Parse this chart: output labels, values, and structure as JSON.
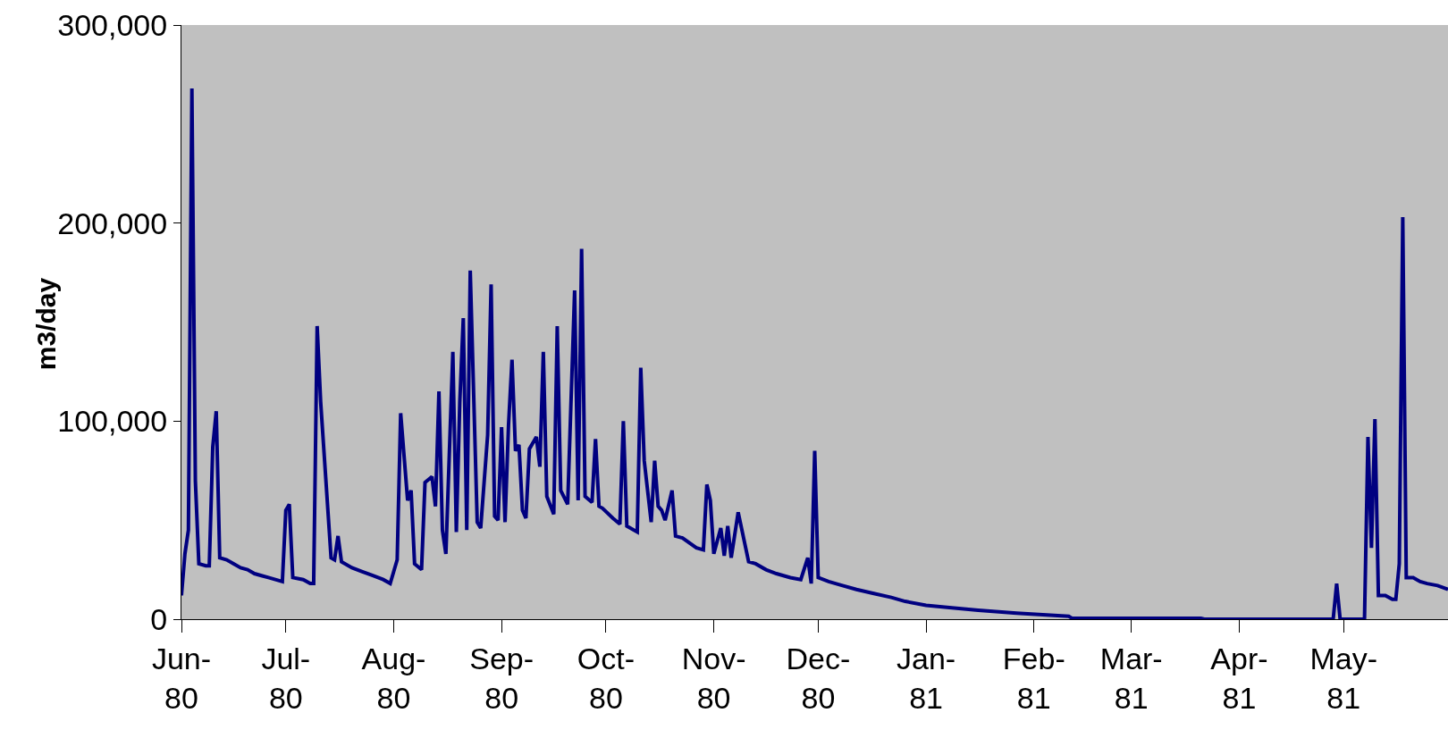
{
  "chart_data": {
    "type": "line",
    "ylabel": "m3/day",
    "x": [
      "1980-06-01",
      "1980-06-02",
      "1980-06-03",
      "1980-06-04",
      "1980-06-05",
      "1980-06-06",
      "1980-06-08",
      "1980-06-09",
      "1980-06-10",
      "1980-06-11",
      "1980-06-12",
      "1980-06-14",
      "1980-06-16",
      "1980-06-18",
      "1980-06-20",
      "1980-06-22",
      "1980-06-24",
      "1980-06-26",
      "1980-06-28",
      "1980-06-30",
      "1980-07-01",
      "1980-07-02",
      "1980-07-03",
      "1980-07-06",
      "1980-07-08",
      "1980-07-09",
      "1980-07-10",
      "1980-07-11",
      "1980-07-14",
      "1980-07-15",
      "1980-07-16",
      "1980-07-17",
      "1980-07-20",
      "1980-07-23",
      "1980-07-26",
      "1980-07-29",
      "1980-07-31",
      "1980-08-02",
      "1980-08-03",
      "1980-08-05",
      "1980-08-06",
      "1980-08-07",
      "1980-08-09",
      "1980-08-10",
      "1980-08-12",
      "1980-08-13",
      "1980-08-14",
      "1980-08-15",
      "1980-08-16",
      "1980-08-18",
      "1980-08-19",
      "1980-08-20",
      "1980-08-21",
      "1980-08-22",
      "1980-08-23",
      "1980-08-25",
      "1980-08-26",
      "1980-08-28",
      "1980-08-29",
      "1980-08-30",
      "1980-08-31",
      "1980-09-01",
      "1980-09-02",
      "1980-09-03",
      "1980-09-04",
      "1980-09-05",
      "1980-09-06",
      "1980-09-07",
      "1980-09-08",
      "1980-09-09",
      "1980-09-11",
      "1980-09-12",
      "1980-09-13",
      "1980-09-14",
      "1980-09-16",
      "1980-09-17",
      "1980-09-18",
      "1980-09-20",
      "1980-09-22",
      "1980-09-23",
      "1980-09-24",
      "1980-09-25",
      "1980-09-27",
      "1980-09-28",
      "1980-09-29",
      "1980-09-30",
      "1980-10-03",
      "1980-10-05",
      "1980-10-06",
      "1980-10-07",
      "1980-10-10",
      "1980-10-11",
      "1980-10-12",
      "1980-10-14",
      "1980-10-15",
      "1980-10-16",
      "1980-10-17",
      "1980-10-18",
      "1980-10-20",
      "1980-10-21",
      "1980-10-23",
      "1980-10-27",
      "1980-10-29",
      "1980-10-30",
      "1980-10-31",
      "1980-11-01",
      "1980-11-03",
      "1980-11-04",
      "1980-11-05",
      "1980-11-06",
      "1980-11-08",
      "1980-11-11",
      "1980-11-13",
      "1980-11-16",
      "1980-11-19",
      "1980-11-23",
      "1980-11-26",
      "1980-11-28",
      "1980-11-29",
      "1980-11-30",
      "1980-12-01",
      "1980-12-04",
      "1980-12-08",
      "1980-12-12",
      "1980-12-17",
      "1980-12-22",
      "1980-12-26",
      "1981-01-01",
      "1981-01-07",
      "1981-01-16",
      "1981-01-27",
      "1981-02-11",
      "1981-02-12",
      "1981-03-21",
      "1981-03-22",
      "1981-04-28",
      "1981-04-29",
      "1981-04-30",
      "1981-05-07",
      "1981-05-08",
      "1981-05-09",
      "1981-05-10",
      "1981-05-11",
      "1981-05-13",
      "1981-05-15",
      "1981-05-16",
      "1981-05-17",
      "1981-05-18",
      "1981-05-19",
      "1981-05-21",
      "1981-05-23",
      "1981-05-25",
      "1981-05-28",
      "1981-05-31"
    ],
    "series": [
      {
        "color": "#000080",
        "values": [
          12000,
          33000,
          45000,
          268000,
          70000,
          28000,
          27000,
          27000,
          87000,
          105000,
          31000,
          30000,
          28000,
          26000,
          25000,
          23000,
          22000,
          21000,
          20000,
          19000,
          55000,
          58000,
          21000,
          20000,
          18000,
          18000,
          148000,
          110000,
          31000,
          30000,
          42000,
          29000,
          26000,
          24000,
          22000,
          20000,
          18000,
          30000,
          104000,
          60000,
          65000,
          28000,
          25000,
          69000,
          72000,
          57000,
          115000,
          45000,
          33000,
          135000,
          44000,
          110000,
          152000,
          45000,
          176000,
          49000,
          46000,
          93000,
          169000,
          52000,
          50000,
          97000,
          49000,
          98000,
          131000,
          85000,
          88000,
          55000,
          51000,
          86000,
          92000,
          77000,
          135000,
          62000,
          53000,
          148000,
          65000,
          58000,
          166000,
          60000,
          187000,
          62000,
          59000,
          91000,
          57000,
          56000,
          51000,
          48000,
          100000,
          47000,
          44000,
          127000,
          80000,
          49000,
          80000,
          57000,
          55000,
          50000,
          65000,
          42000,
          41000,
          36000,
          35000,
          68000,
          60000,
          33000,
          46000,
          32000,
          47000,
          31000,
          54000,
          29000,
          28000,
          25000,
          23000,
          21000,
          20000,
          31000,
          18000,
          85000,
          21000,
          19000,
          17000,
          15000,
          13000,
          11000,
          9000,
          7000,
          6000,
          4500,
          3000,
          1500,
          400,
          400,
          0,
          0,
          18000,
          0,
          0,
          92000,
          36000,
          101000,
          12000,
          12000,
          10000,
          10000,
          28000,
          203000,
          21000,
          21000,
          19000,
          18000,
          17000,
          15000
        ]
      }
    ],
    "xlim": [
      "1980-06-01",
      "1981-05-31"
    ],
    "xticks": [
      {
        "value": "1980-06-01",
        "label": "Jun-\n80"
      },
      {
        "value": "1980-07-01",
        "label": "Jul-\n80"
      },
      {
        "value": "1980-08-01",
        "label": "Aug-\n80"
      },
      {
        "value": "1980-09-01",
        "label": "Sep-\n80"
      },
      {
        "value": "1980-10-01",
        "label": "Oct-\n80"
      },
      {
        "value": "1980-11-01",
        "label": "Nov-\n80"
      },
      {
        "value": "1980-12-01",
        "label": "Dec-\n80"
      },
      {
        "value": "1981-01-01",
        "label": "Jan-\n81"
      },
      {
        "value": "1981-02-01",
        "label": "Feb-\n81"
      },
      {
        "value": "1981-03-01",
        "label": "Mar-\n81"
      },
      {
        "value": "1981-04-01",
        "label": "Apr-\n81"
      },
      {
        "value": "1981-05-01",
        "label": "May-\n81"
      }
    ],
    "ylim": [
      0,
      300000
    ],
    "yticks": [
      0,
      {
        "value": 100000,
        "label": "100,000"
      },
      {
        "value": 200000,
        "label": "200,000"
      },
      {
        "value": 300000,
        "label": "300,000"
      }
    ],
    "grid": false,
    "marker": "none",
    "line_style": "solid"
  }
}
